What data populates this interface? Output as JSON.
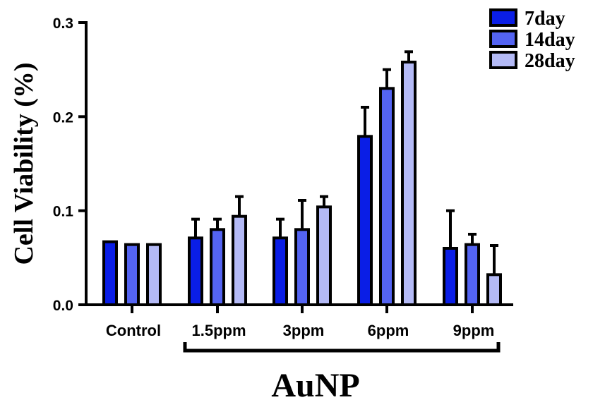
{
  "chart_data": {
    "type": "bar",
    "categories": [
      "Control",
      "1.5ppm",
      "3ppm",
      "6ppm",
      "9ppm"
    ],
    "series": [
      {
        "name": "7day",
        "color": "#0a1ee6",
        "values": [
          0.067,
          0.071,
          0.071,
          0.179,
          0.06
        ],
        "errors": [
          0,
          0.02,
          0.02,
          0.031,
          0.04
        ]
      },
      {
        "name": "14day",
        "color": "#5464f2",
        "values": [
          0.064,
          0.08,
          0.08,
          0.23,
          0.064
        ],
        "errors": [
          0,
          0.011,
          0.031,
          0.02,
          0.011
        ]
      },
      {
        "name": "28day",
        "color": "#b4baf6",
        "values": [
          0.064,
          0.094,
          0.104,
          0.258,
          0.032
        ],
        "errors": [
          0,
          0.021,
          0.011,
          0.011,
          0.031
        ]
      }
    ],
    "ylabel": "Cell Viability (%)",
    "xlabel": "",
    "group_label": "AuNP",
    "ylim": [
      0,
      0.3
    ],
    "yticks": [
      "0.0",
      "0.1",
      "0.2",
      "0.3"
    ],
    "ytick_values": [
      0,
      0.1,
      0.2,
      0.3
    ],
    "grid": false,
    "legend_position": "top-right"
  }
}
